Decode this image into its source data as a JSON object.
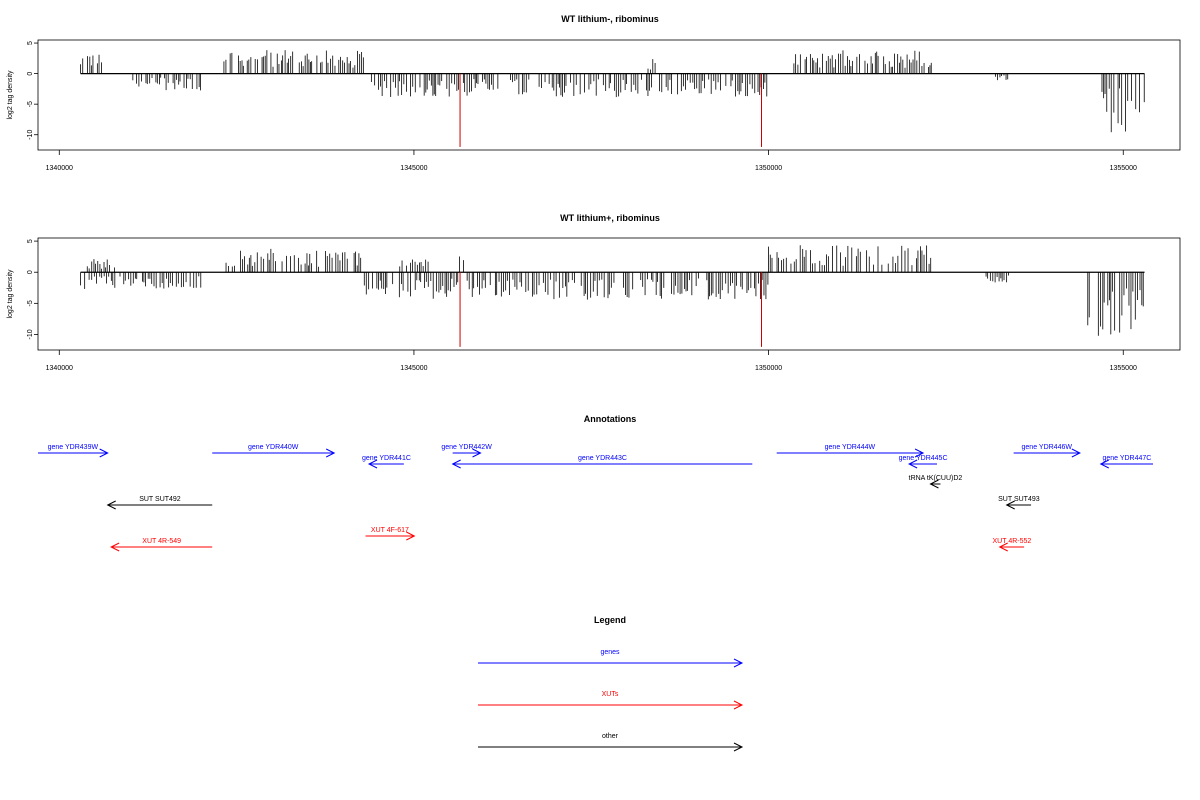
{
  "colors": {
    "genes": "#0000ff",
    "xuts": "#ff0000",
    "other": "#000000",
    "signal": "#000000",
    "highlight": "#cc0000"
  },
  "chart_data": [
    {
      "type": "bar",
      "title": "WT lithium-, ribominus",
      "ylabel": "log2 tag density",
      "xlim": [
        1339700,
        1355800
      ],
      "ylim": [
        -12.5,
        5.5
      ],
      "xticks": [
        1340000,
        1345000,
        1350000,
        1355000
      ],
      "yticks": [
        5,
        0,
        -5,
        -10
      ],
      "series_plus_regions": [
        [
          1340300,
          1340600,
          3.0
        ],
        [
          1342300,
          1344300,
          3.5
        ],
        [
          1348300,
          1348400,
          2.5
        ],
        [
          1350300,
          1352300,
          3.5
        ]
      ],
      "series_minus_regions": [
        [
          1341000,
          1342000,
          -2.5
        ],
        [
          1344400,
          1350000,
          -3.5
        ],
        [
          1353200,
          1353400,
          -1.0
        ],
        [
          1354700,
          1355300,
          -9.0
        ]
      ],
      "highlight_bars": [
        [
          1345650,
          -12.0
        ],
        [
          1349900,
          -12.0
        ]
      ]
    },
    {
      "type": "bar",
      "title": "WT lithium+, ribominus",
      "ylabel": "log2 tag density",
      "xlim": [
        1339700,
        1355800
      ],
      "ylim": [
        -12.5,
        5.5
      ],
      "xticks": [
        1340000,
        1345000,
        1350000,
        1355000
      ],
      "yticks": [
        5,
        0,
        -5,
        -10
      ],
      "series_plus_regions": [
        [
          1340300,
          1340800,
          2.0
        ],
        [
          1342300,
          1344300,
          3.5
        ],
        [
          1344800,
          1345200,
          2.0
        ],
        [
          1345600,
          1345700,
          3.0
        ],
        [
          1350000,
          1352300,
          4.0
        ]
      ],
      "series_minus_regions": [
        [
          1340300,
          1342000,
          -2.5
        ],
        [
          1344300,
          1350000,
          -4.0
        ],
        [
          1353000,
          1353400,
          -1.5
        ],
        [
          1354500,
          1355300,
          -9.5
        ]
      ],
      "highlight_bars": [
        [
          1345650,
          -12.0
        ],
        [
          1349900,
          -12.0
        ]
      ]
    }
  ],
  "annotations": {
    "title": "Annotations",
    "features": [
      {
        "label": "gene YDR439W",
        "start": 1339700,
        "end": 1340700,
        "strand": "+",
        "kind": "genes",
        "row": 0
      },
      {
        "label": "gene YDR440W",
        "start": 1342200,
        "end": 1343950,
        "strand": "+",
        "kind": "genes",
        "row": 0
      },
      {
        "label": "gene YDR441C",
        "start": 1344450,
        "end": 1344950,
        "strand": "-",
        "kind": "genes",
        "row": 1
      },
      {
        "label": "gene YDR442W",
        "start": 1345650,
        "end": 1346050,
        "strand": "+",
        "kind": "genes",
        "row": 0
      },
      {
        "label": "gene YDR443C",
        "start": 1345650,
        "end": 1349950,
        "strand": "-",
        "kind": "genes",
        "row": 1
      },
      {
        "label": "gene YDR444W",
        "start": 1350300,
        "end": 1352400,
        "strand": "+",
        "kind": "genes",
        "row": 0
      },
      {
        "label": "gene YDR445C",
        "start": 1352200,
        "end": 1352600,
        "strand": "-",
        "kind": "genes",
        "row": 1
      },
      {
        "label": "gene YDR446W",
        "start": 1353700,
        "end": 1354650,
        "strand": "+",
        "kind": "genes",
        "row": 0
      },
      {
        "label": "gene YDR447C",
        "start": 1354950,
        "end": 1355700,
        "strand": "-",
        "kind": "genes",
        "row": 1
      },
      {
        "label": "tRNA tK(CUU)D2",
        "start": 1352600,
        "end": 1352650,
        "strand": "-",
        "kind": "other",
        "row": 2
      },
      {
        "label": "SUT SUT492",
        "start": 1340700,
        "end": 1342200,
        "strand": "-",
        "kind": "other",
        "row": 3
      },
      {
        "label": "SUT SUT493",
        "start": 1353600,
        "end": 1353950,
        "strand": "-",
        "kind": "other",
        "row": 3
      },
      {
        "label": "XUT 4R-549",
        "start": 1340750,
        "end": 1342200,
        "strand": "-",
        "kind": "xuts",
        "row": 5
      },
      {
        "label": "XUT 4F-617",
        "start": 1344400,
        "end": 1345100,
        "strand": "+",
        "kind": "xuts",
        "row": 4
      },
      {
        "label": "XUT 4R-552",
        "start": 1353500,
        "end": 1353850,
        "strand": "-",
        "kind": "xuts",
        "row": 5
      }
    ]
  },
  "legend": {
    "title": "Legend",
    "items": [
      {
        "label": "genes",
        "kind": "genes"
      },
      {
        "label": "XUTs",
        "kind": "xuts"
      },
      {
        "label": "other",
        "kind": "other"
      }
    ]
  }
}
